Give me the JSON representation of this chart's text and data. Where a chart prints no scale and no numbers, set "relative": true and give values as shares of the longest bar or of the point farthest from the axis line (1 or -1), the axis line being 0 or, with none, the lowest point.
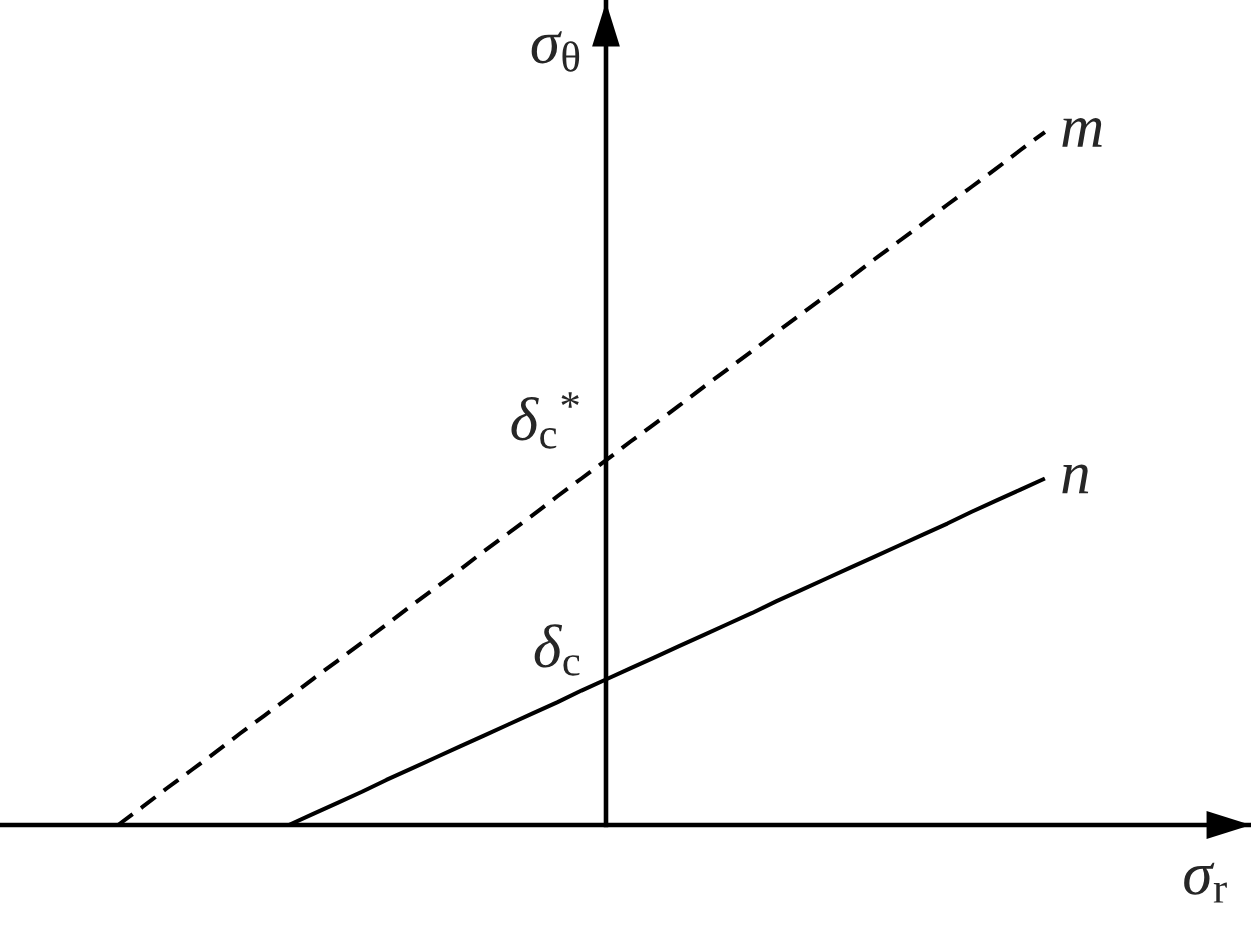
{
  "chart_data": {
    "type": "line",
    "relative": true,
    "xlabel": "σ$_{r}$",
    "ylabel": "σ$_{θ}$",
    "categories": [
      null,
      null,
      null,
      null,
      null,
      null,
      null,
      null,
      null,
      null,
      null,
      null,
      null,
      null,
      null,
      null,
      null,
      null,
      null,
      null,
      null,
      null,
      null,
      null,
      null,
      null,
      null,
      null,
      null,
      null,
      null,
      null,
      null,
      null,
      null,
      null,
      null,
      null,
      null
    ],
    "series": [
      {
        "name": "m",
        "color": "#000000",
        "line_style": "dashed",
        "values": [
          0,
          0.026,
          0.053,
          0.079,
          0.105,
          0.132,
          0.158,
          0.184,
          0.211,
          0.237,
          0.263,
          0.289,
          0.316,
          0.342,
          0.368,
          0.395,
          0.421,
          0.447,
          0.474,
          0.5,
          0.526,
          0.553,
          0.579,
          0.605,
          0.632,
          0.658,
          0.684,
          0.711,
          0.737,
          0.763,
          0.789,
          0.816,
          0.842,
          0.868,
          0.895,
          0.921,
          0.947,
          0.974,
          1
        ]
      },
      {
        "name": "n",
        "color": "#000000",
        "line_style": "solid",
        "values": [
          null,
          null,
          null,
          null,
          null,
          null,
          null,
          0,
          0.016,
          0.032,
          0.048,
          0.065,
          0.081,
          0.097,
          0.113,
          0.129,
          0.145,
          0.161,
          0.177,
          0.194,
          0.21,
          0.226,
          0.242,
          0.258,
          0.274,
          0.29,
          0.306,
          0.323,
          0.339,
          0.355,
          0.371,
          0.387,
          0.403,
          0.419,
          0.435,
          0.452,
          0.468,
          0.484,
          0.5
        ]
      }
    ],
    "annotations": [
      "δ$_{c}$$^{*}$",
      "δ$_{c}$"
    ]
  }
}
